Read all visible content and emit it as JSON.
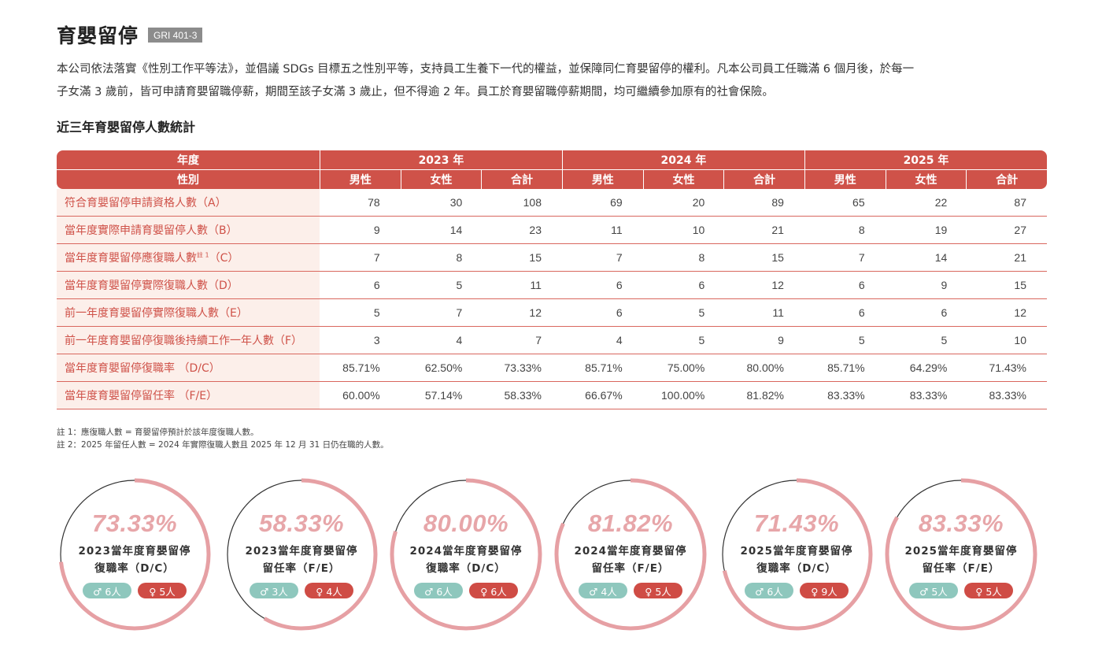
{
  "header": {
    "title": "育嬰留停",
    "badge": "GRI 401-3"
  },
  "intro": {
    "line1": "本公司依法落實《性別工作平等法》，並倡議 SDGs 目標五之性別平等，支持員工生養下一代的權益，並保障同仁育嬰留停的權利。凡本公司員工任職滿 6 個月後，於每一",
    "line2": "子女滿 3 歲前，皆可申請育嬰留職停薪，期間至該子女滿 3 歲止，但不得逾 2 年。員工於育嬰留職停薪期間，均可繼續參加原有的社會保險。"
  },
  "table": {
    "subtitle": "近三年育嬰留停人數統計",
    "year_header": "年度",
    "gender_header": "性別",
    "years": [
      "2023 年",
      "2024 年",
      "2025 年"
    ],
    "subcols": [
      "男性",
      "女性",
      "合計"
    ],
    "rows": [
      {
        "label": "符合育嬰留停申請資格人數（A）",
        "values": [
          "78",
          "30",
          "108",
          "69",
          "20",
          "89",
          "65",
          "22",
          "87"
        ]
      },
      {
        "label": "當年度實際申請育嬰留停人數（B）",
        "values": [
          "9",
          "14",
          "23",
          "11",
          "10",
          "21",
          "8",
          "19",
          "27"
        ]
      },
      {
        "label": "當年度育嬰留停應復職人數",
        "sup": "註 1",
        "suffix": "（C）",
        "values": [
          "7",
          "8",
          "15",
          "7",
          "8",
          "15",
          "7",
          "14",
          "21"
        ]
      },
      {
        "label": "當年度育嬰留停實際復職人數（D）",
        "values": [
          "6",
          "5",
          "11",
          "6",
          "6",
          "12",
          "6",
          "9",
          "15"
        ]
      },
      {
        "label": "前一年度育嬰留停實際復職人數（E）",
        "values": [
          "5",
          "7",
          "12",
          "6",
          "5",
          "11",
          "6",
          "6",
          "12"
        ]
      },
      {
        "label": "前一年度育嬰留停復職後持續工作一年人數（F）",
        "values": [
          "3",
          "4",
          "7",
          "4",
          "5",
          "9",
          "5",
          "5",
          "10"
        ]
      },
      {
        "label": "當年度育嬰留停復職率 （D/C）",
        "values": [
          "85.71%",
          "62.50%",
          "73.33%",
          "85.71%",
          "75.00%",
          "80.00%",
          "85.71%",
          "64.29%",
          "71.43%"
        ]
      },
      {
        "label": "當年度育嬰留停留任率 （F/E）",
        "values": [
          "60.00%",
          "57.14%",
          "58.33%",
          "66.67%",
          "100.00%",
          "81.82%",
          "83.33%",
          "83.33%",
          "83.33%"
        ]
      }
    ]
  },
  "notes": {
    "note1": "註 1：應復職人數 = 育嬰留停預計於該年度復職人數。",
    "note2": "註 2：2025 年留任人數 = 2024 年實際復職人數且 2025 年 12 月 31 日仍在職的人數。"
  },
  "colors": {
    "accent": "#cf5249",
    "ring": "#e6a0a4",
    "male": "#8ec7bd",
    "female": "#cf4c45"
  },
  "gauges": [
    {
      "percent_text": "73.33%",
      "value": 73.33,
      "line1": "2023當年度育嬰留停",
      "line2": "復職率（D/C）",
      "male": "♂ 6人",
      "female": "♀ 5人"
    },
    {
      "percent_text": "58.33%",
      "value": 58.33,
      "line1": "2023當年度育嬰留停",
      "line2": "留任率（F/E）",
      "male": "♂ 3人",
      "female": "♀ 4人"
    },
    {
      "percent_text": "80.00%",
      "value": 80.0,
      "line1": "2024當年度育嬰留停",
      "line2": "復職率（D/C）",
      "male": "♂ 6人",
      "female": "♀ 6人"
    },
    {
      "percent_text": "81.82%",
      "value": 81.82,
      "line1": "2024當年度育嬰留停",
      "line2": "留任率（F/E）",
      "male": "♂ 4人",
      "female": "♀ 5人"
    },
    {
      "percent_text": "71.43%",
      "value": 71.43,
      "line1": "2025當年度育嬰留停",
      "line2": "復職率（D/C）",
      "male": "♂ 6人",
      "female": "♀ 9人"
    },
    {
      "percent_text": "83.33%",
      "value": 83.33,
      "line1": "2025當年度育嬰留停",
      "line2": "留任率（F/E）",
      "male": "♂ 5人",
      "female": "♀ 5人"
    }
  ]
}
